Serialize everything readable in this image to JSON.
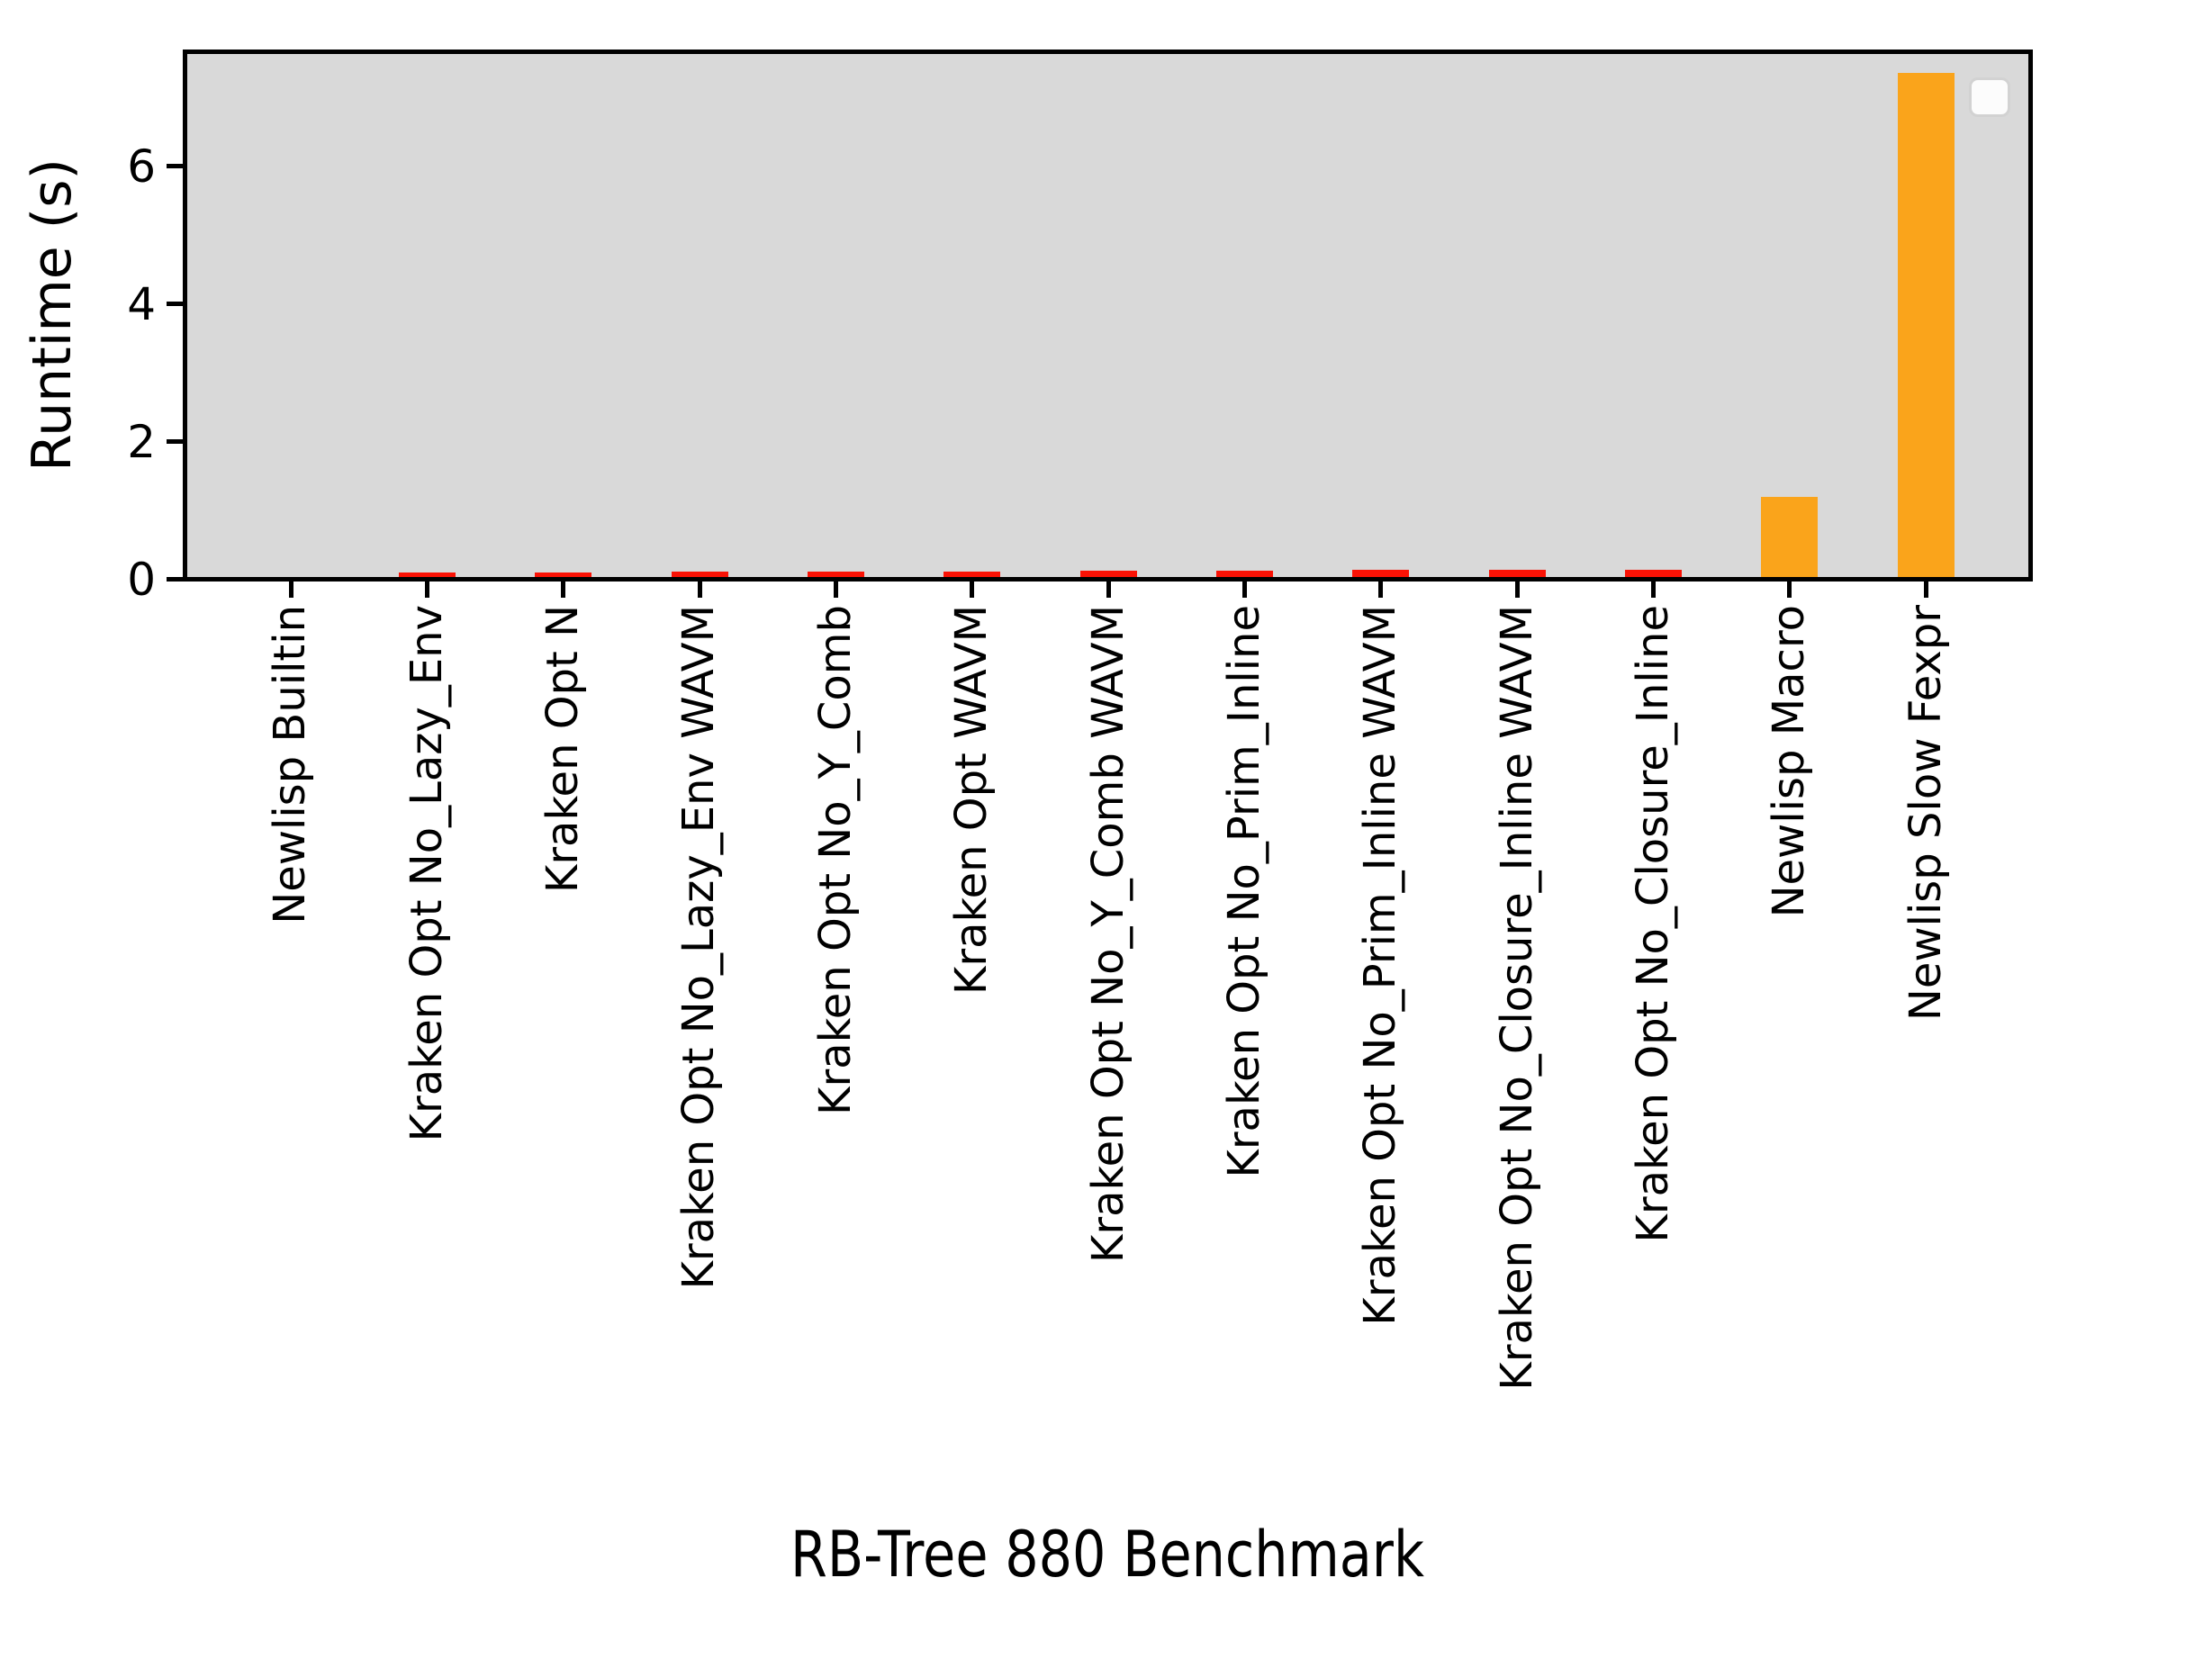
{
  "chart_data": {
    "type": "bar",
    "title": "",
    "xlabel": "RB-Tree 880 Benchmark",
    "ylabel": "Runtime (s)",
    "categories": [
      "Newlisp Builtin",
      "Kraken Opt No_Lazy_Env",
      "Kraken Opt N",
      "Kraken Opt No_Lazy_Env WAVM",
      "Kraken Opt No_Y_Comb",
      "Kraken Opt WAVM",
      "Kraken Opt No_Y_Comb WAVM",
      "Kraken Opt No_Prim_Inline",
      "Kraken Opt No_Prim_Inline WAVM",
      "Kraken Opt No_Closure_Inline WAVM",
      "Kraken Opt No_Closure_Inline",
      "Newlisp Macro",
      "Newlisp Slow Fexpr"
    ],
    "values": [
      0.005,
      0.1,
      0.1,
      0.11,
      0.11,
      0.11,
      0.12,
      0.13,
      0.14,
      0.14,
      0.14,
      1.2,
      7.35
    ],
    "bar_colors": [
      "#fa1205",
      "#fa1205",
      "#fa1205",
      "#fa1205",
      "#fa1205",
      "#fa1205",
      "#fa1205",
      "#fa1205",
      "#fa1205",
      "#fa1205",
      "#fa1205",
      "#faa41b",
      "#faa41b"
    ],
    "yticks": [
      0,
      2,
      4,
      6
    ],
    "ylim": [
      0,
      7.7
    ],
    "grid": false,
    "legend": {
      "visible": true,
      "entries": []
    },
    "plot_background": "#d9d9d9",
    "figure_background": "#ffffff",
    "axis_color": "#000000"
  }
}
